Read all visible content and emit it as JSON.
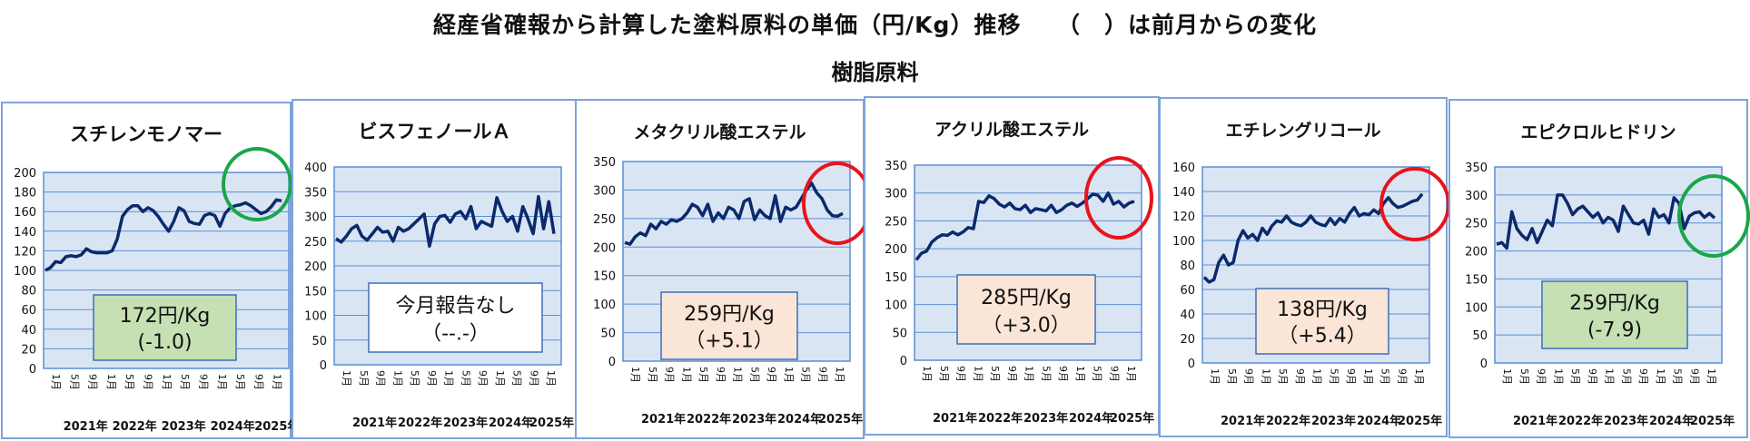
{
  "title": "経産省確報から計算した塗料原料の単価（円/Kg）推移　　（　）は前月からの変化",
  "subtitle": "樹脂原料",
  "colors": {
    "line": "#0b2a6b",
    "plot_bg": "#dae5f4",
    "grid": "#5b8fd3",
    "frame": "#7ea4d8",
    "green_box": "#c6e0b4",
    "peach_box": "#fbe5d6",
    "white_box": "#ffffff",
    "green_circle": "#1aa64a",
    "red_circle": "#e8141c"
  },
  "chart_data": [
    {
      "type": "line",
      "title": "スチレンモノマー",
      "ylim": [
        0,
        200
      ],
      "yticks": [
        "0",
        "20",
        "40",
        "60",
        "80",
        "100",
        "120",
        "140",
        "160",
        "180",
        "200"
      ],
      "x_month_labels": [
        "1月",
        "5月",
        "9月",
        "1月",
        "5月",
        "9月",
        "1月",
        "5月",
        "9月",
        "1月",
        "5月",
        "9月",
        "1月"
      ],
      "x_year_labels": [
        "2021年",
        "2022年",
        "2023年",
        "2024年",
        "2025年"
      ],
      "values": [
        100,
        103,
        109,
        108,
        114,
        115,
        114,
        116,
        122,
        119,
        118,
        118,
        118,
        120,
        132,
        155,
        162,
        166,
        166,
        160,
        164,
        161,
        155,
        147,
        140,
        150,
        164,
        161,
        150,
        148,
        147,
        156,
        158,
        156,
        145,
        158,
        164,
        166,
        167,
        169,
        166,
        162,
        158,
        160,
        165,
        172,
        171
      ],
      "callout": {
        "lines": [
          "172円/Kg",
          "(-1.0)"
        ],
        "style": "green"
      },
      "circle": "green"
    },
    {
      "type": "line",
      "title": "ビスフェノールＡ",
      "ylim": [
        0,
        400
      ],
      "yticks": [
        "0",
        "50",
        "100",
        "150",
        "200",
        "250",
        "300",
        "350",
        "400"
      ],
      "x_month_labels": [
        "1月",
        "5月",
        "9月",
        "1月",
        "5月",
        "9月",
        "1月",
        "5月",
        "9月",
        "1月",
        "5月",
        "9月",
        "1月"
      ],
      "x_year_labels": [
        "2021年",
        "2022年",
        "2023年",
        "2024年",
        "2025年"
      ],
      "values": [
        255,
        248,
        260,
        275,
        282,
        260,
        252,
        265,
        278,
        268,
        270,
        250,
        278,
        270,
        275,
        285,
        295,
        305,
        240,
        285,
        300,
        302,
        288,
        305,
        310,
        295,
        320,
        275,
        290,
        285,
        280,
        338,
        310,
        290,
        300,
        270,
        320,
        295,
        265,
        340,
        275,
        330,
        265
      ],
      "callout": {
        "lines": [
          "今月報告なし",
          "（--.-）"
        ],
        "style": "white"
      },
      "circle": ""
    },
    {
      "type": "line",
      "title": "メタクリル酸エステル",
      "ylim": [
        0,
        350
      ],
      "yticks": [
        "0",
        "50",
        "100",
        "150",
        "200",
        "250",
        "300",
        "350"
      ],
      "x_month_labels": [
        "1月",
        "5月",
        "9月",
        "1月",
        "5月",
        "9月",
        "1月",
        "5月",
        "9月",
        "1月",
        "5月",
        "9月",
        "1月"
      ],
      "x_year_labels": [
        "2021年",
        "2022年",
        "2023年",
        "2024年",
        "2025年"
      ],
      "values": [
        208,
        205,
        218,
        225,
        220,
        240,
        232,
        245,
        240,
        248,
        245,
        250,
        260,
        275,
        270,
        255,
        275,
        245,
        260,
        250,
        270,
        265,
        250,
        280,
        285,
        248,
        265,
        255,
        250,
        290,
        245,
        270,
        265,
        270,
        285,
        300,
        312,
        295,
        285,
        265,
        255,
        254,
        259
      ],
      "callout": {
        "lines": [
          "259円/Kg",
          "（+5.1）"
        ],
        "style": "peach"
      },
      "circle": "red"
    },
    {
      "type": "line",
      "title": "アクリル酸エステル",
      "ylim": [
        0,
        350
      ],
      "yticks": [
        "0",
        "50",
        "100",
        "150",
        "200",
        "250",
        "300",
        "350"
      ],
      "x_month_labels": [
        "1月",
        "5月",
        "9月",
        "1月",
        "5月",
        "9月",
        "1月",
        "5月",
        "9月",
        "1月",
        "5月",
        "9月",
        "1月"
      ],
      "x_year_labels": [
        "2021年",
        "2022年",
        "2023年",
        "2024年",
        "2025年"
      ],
      "values": [
        180,
        192,
        196,
        212,
        220,
        225,
        224,
        230,
        225,
        230,
        238,
        236,
        285,
        283,
        295,
        290,
        280,
        275,
        282,
        272,
        270,
        278,
        265,
        272,
        270,
        268,
        278,
        265,
        270,
        278,
        282,
        276,
        282,
        290,
        298,
        296,
        285,
        300,
        280,
        285,
        275,
        282,
        285
      ],
      "callout": {
        "lines": [
          "285円/Kg",
          "（+3.0）"
        ],
        "style": "peach"
      },
      "circle": "red"
    },
    {
      "type": "line",
      "title": "エチレングリコール",
      "ylim": [
        0,
        160
      ],
      "yticks": [
        "0",
        "20",
        "40",
        "60",
        "80",
        "100",
        "120",
        "140",
        "160"
      ],
      "x_month_labels": [
        "1月",
        "5月",
        "9月",
        "1月",
        "5月",
        "9月",
        "1月",
        "5月",
        "9月",
        "1月",
        "5月",
        "9月",
        "1月"
      ],
      "x_year_labels": [
        "2021年",
        "2022年",
        "2023年",
        "2024年",
        "2025年"
      ],
      "values": [
        70,
        66,
        68,
        82,
        88,
        80,
        82,
        100,
        108,
        102,
        105,
        100,
        110,
        105,
        112,
        116,
        115,
        120,
        115,
        113,
        112,
        115,
        120,
        115,
        113,
        112,
        118,
        113,
        118,
        115,
        122,
        127,
        120,
        122,
        121,
        125,
        122,
        130,
        135,
        130,
        127,
        128,
        130,
        132,
        133,
        138
      ],
      "callout": {
        "lines": [
          "138円/Kg",
          "（+5.4）"
        ],
        "style": "peach"
      },
      "circle": "red"
    },
    {
      "type": "line",
      "title": "エピクロルヒドリン",
      "ylim": [
        0,
        350
      ],
      "yticks": [
        "0",
        "50",
        "100",
        "150",
        "200",
        "250",
        "300",
        "350"
      ],
      "x_month_labels": [
        "1月",
        "5月",
        "9月",
        "1月",
        "5月",
        "9月",
        "1月",
        "5月",
        "9月",
        "1月",
        "5月",
        "9月",
        "1月"
      ],
      "x_year_labels": [
        "2021年",
        "2022年",
        "2023年",
        "2024年",
        "2025年"
      ],
      "values": [
        212,
        215,
        205,
        270,
        240,
        228,
        220,
        240,
        215,
        235,
        255,
        245,
        300,
        300,
        285,
        265,
        275,
        280,
        270,
        260,
        268,
        250,
        260,
        255,
        235,
        280,
        265,
        250,
        248,
        255,
        230,
        275,
        260,
        265,
        250,
        295,
        285,
        240,
        262,
        268,
        270,
        260,
        267,
        259
      ],
      "callout": {
        "lines": [
          "259円/Kg",
          "(-7.9)"
        ],
        "style": "green"
      },
      "circle": "green"
    }
  ]
}
